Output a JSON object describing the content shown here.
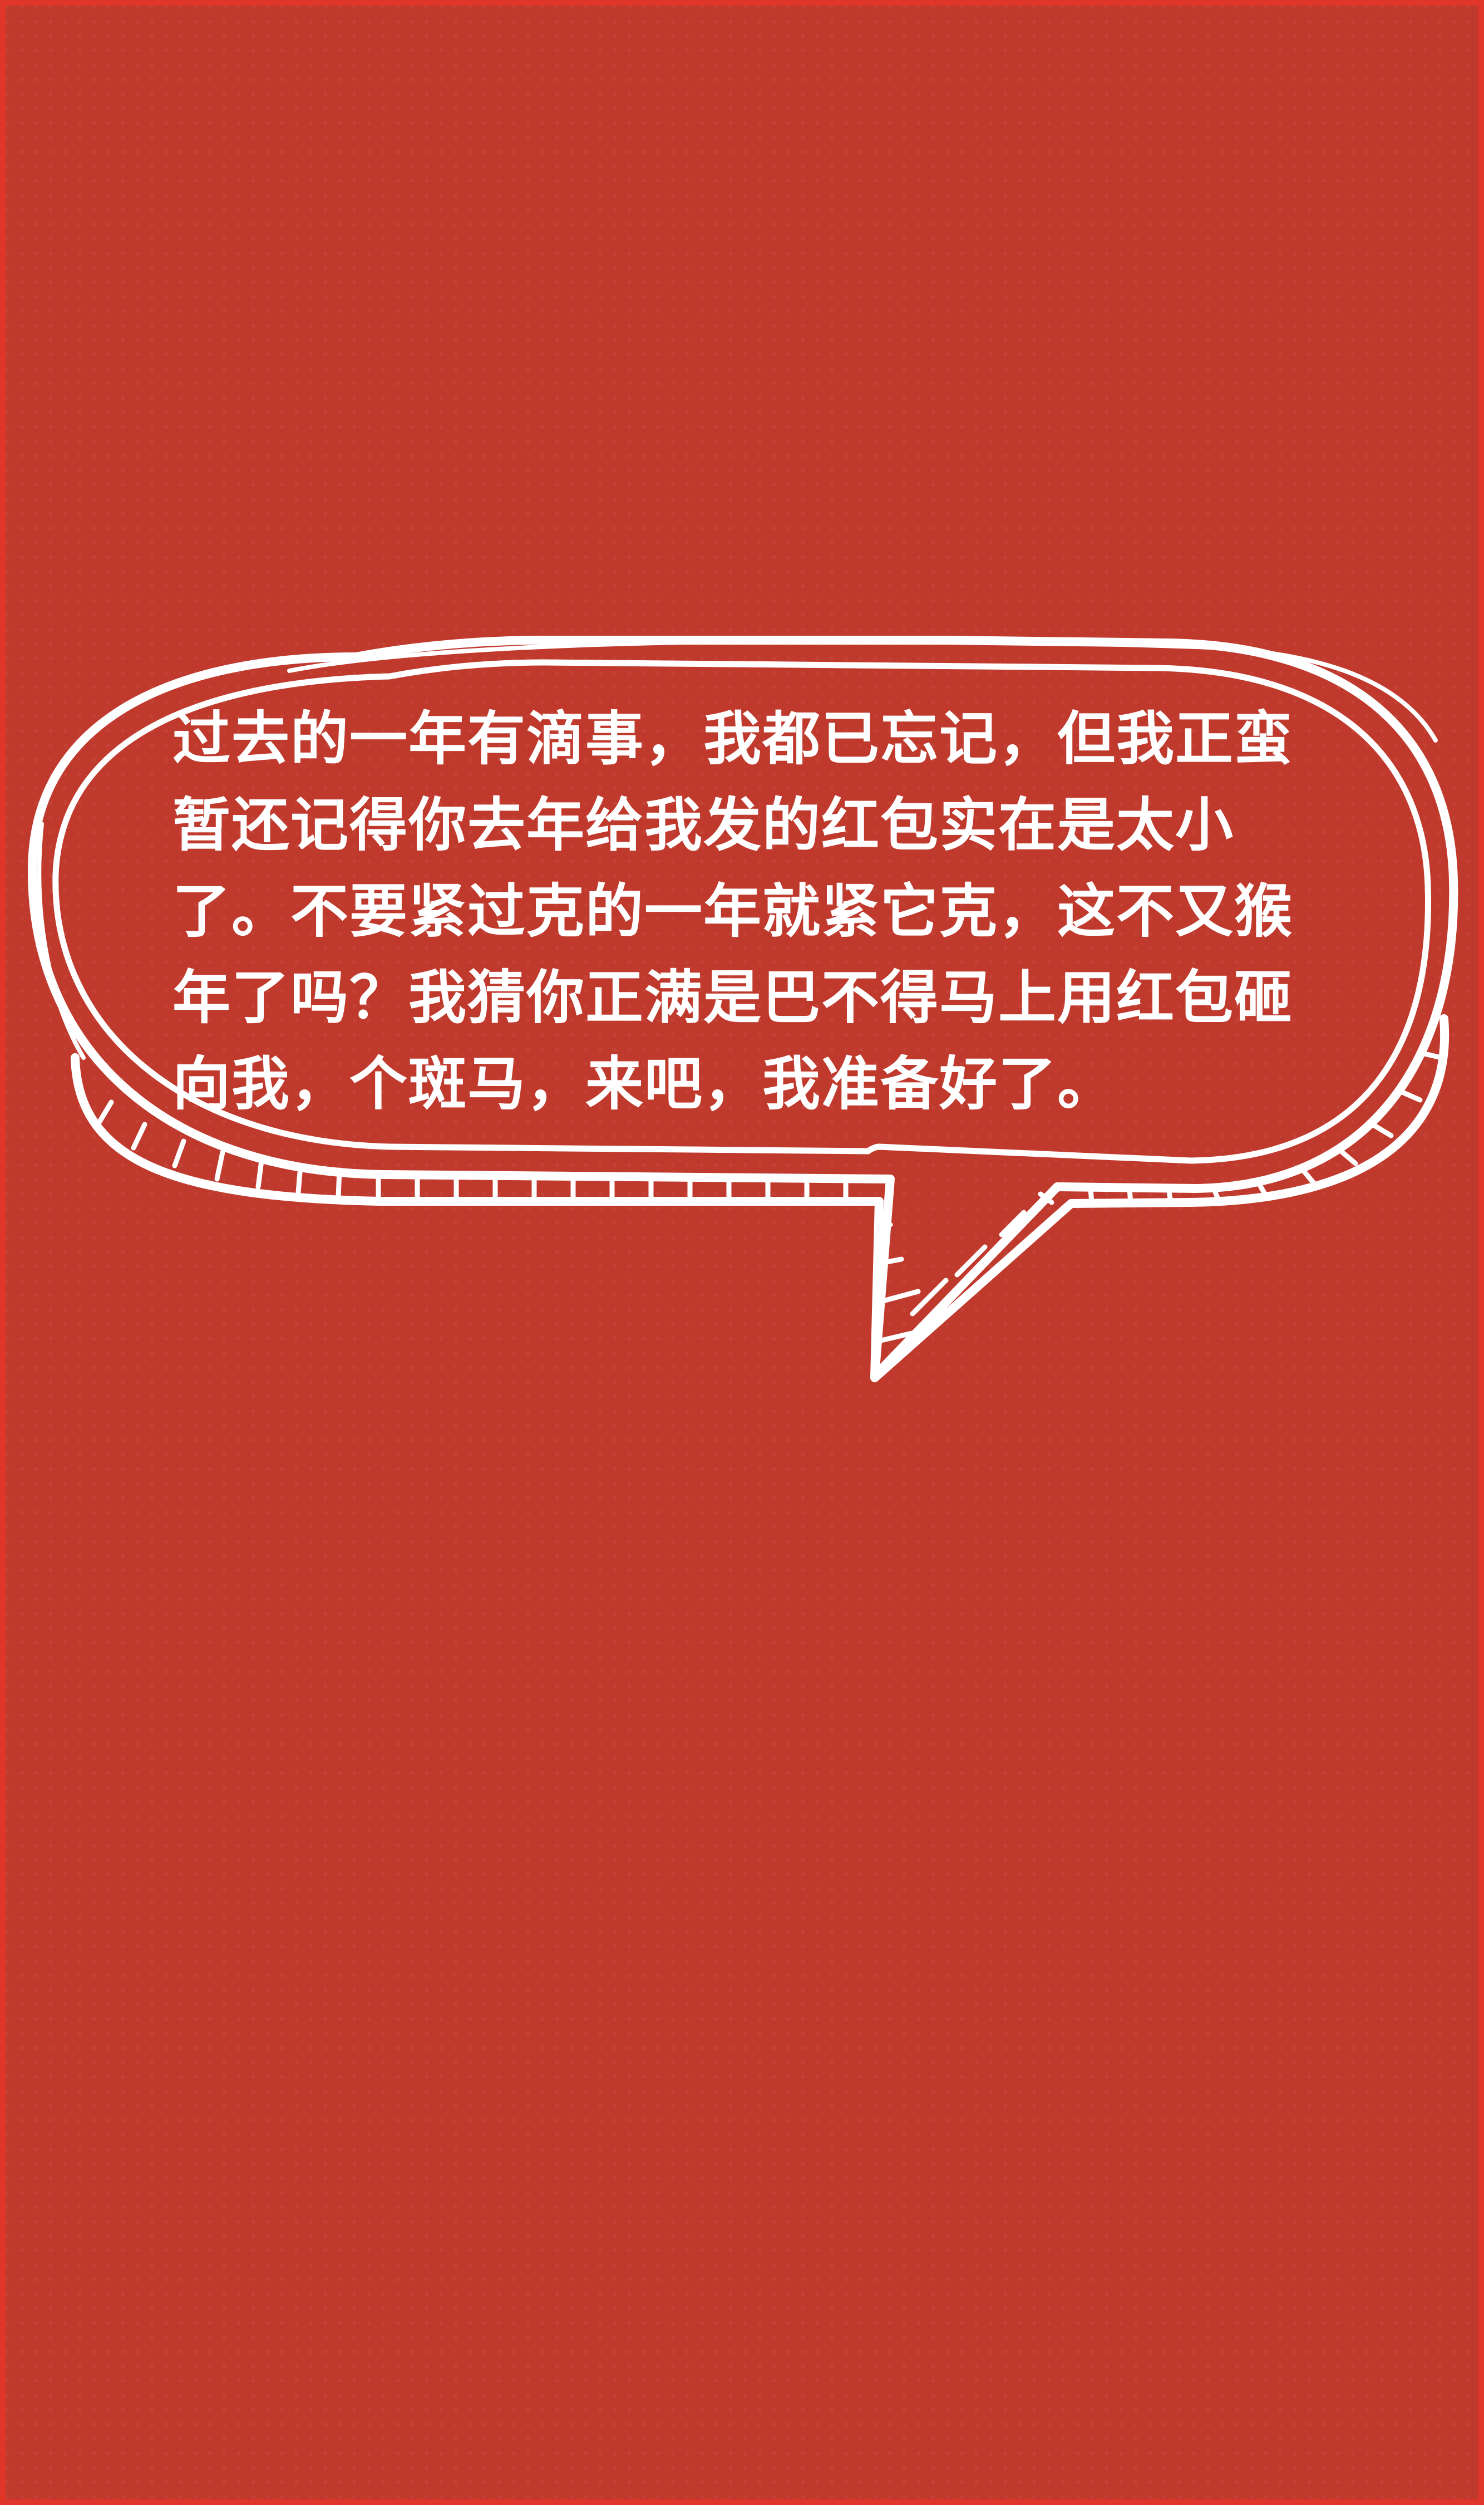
{
  "speech_bubble": {
    "text": "过去的一年有滴事，我都已忘记，但我正蛮暂还记得你去年给我发的红包实在是太小了。不要紧过克的一年就紧它克，这不又猴年了吗？我猜你正满是巴不得马上用红包砸向我，个斑马，来吧，我准备好了。"
  },
  "colors": {
    "background": "#c0392d",
    "border": "#e0362a",
    "text": "#ffffff",
    "bubble_outline": "#ffffff"
  }
}
